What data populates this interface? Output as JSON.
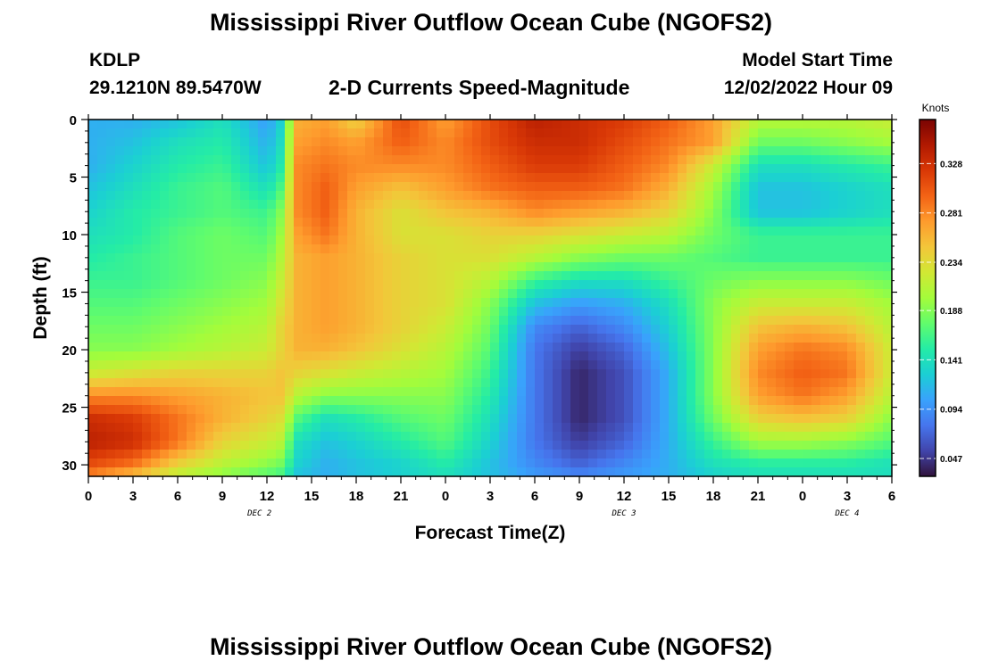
{
  "title": "Mississippi River Outflow Ocean Cube (NGOFS2)",
  "title_repeat": "Mississippi River Outflow Ocean Cube (NGOFS2)",
  "station": {
    "id": "KDLP",
    "coords": "29.1210N  89.5470W"
  },
  "plot_subtitle": "2-D Currents Speed-Magnitude",
  "model_start": {
    "label": "Model Start Time",
    "value": "12/02/2022 Hour 09"
  },
  "chart_data": {
    "type": "heatmap",
    "title": "2-D Currents Speed-Magnitude",
    "xlabel": "Forecast Time(Z)",
    "ylabel": "Depth (ft)",
    "x_hours": [
      0,
      3,
      6,
      9,
      12,
      15,
      18,
      21,
      24,
      27,
      30,
      33,
      36,
      39,
      42,
      45,
      48,
      51,
      54
    ],
    "x_tick_labels": [
      "0",
      "3",
      "6",
      "9",
      "12",
      "15",
      "18",
      "21",
      "0",
      "3",
      "6",
      "9",
      "12",
      "15",
      "18",
      "21",
      "0",
      "3",
      "6"
    ],
    "xlim": [
      0,
      54
    ],
    "y_ticks": [
      0,
      5,
      10,
      15,
      20,
      25,
      30
    ],
    "ylim": [
      0,
      31
    ],
    "y_inverted": true,
    "date_labels": [
      {
        "text": "DEC 2",
        "hour": 11.5
      },
      {
        "text": "DEC 3",
        "hour": 36
      },
      {
        "text": "DEC 4",
        "hour": 51
      }
    ],
    "colorbar": {
      "label": "Knots",
      "ticks": [
        0.047,
        0.094,
        0.141,
        0.188,
        0.234,
        0.281,
        0.328
      ],
      "range": [
        0.03,
        0.37
      ],
      "colors": [
        "#30123b",
        "#4145ab",
        "#4675ed",
        "#39a2fc",
        "#1bcfd4",
        "#24eca6",
        "#61fc6c",
        "#a4fc3b",
        "#d1e834",
        "#f3c63a",
        "#fe9b2d",
        "#f36315",
        "#d93806",
        "#b11901",
        "#7a0403"
      ]
    },
    "depths": [
      0,
      2,
      4,
      6,
      8,
      10,
      12,
      14,
      16,
      18,
      20,
      22,
      24,
      26,
      28,
      30,
      31
    ],
    "speed_time_hours": [
      0,
      3,
      6,
      9,
      12,
      13,
      14,
      16,
      18,
      21,
      24,
      27,
      30,
      33,
      36,
      39,
      42,
      45,
      48,
      51,
      54
    ],
    "speed_knots": [
      [
        0.11,
        0.11,
        0.12,
        0.14,
        0.1,
        0.13,
        0.26,
        0.27,
        0.24,
        0.31,
        0.27,
        0.31,
        0.34,
        0.33,
        0.32,
        0.3,
        0.27,
        0.21,
        0.21,
        0.21,
        0.22
      ],
      [
        0.11,
        0.12,
        0.14,
        0.15,
        0.11,
        0.14,
        0.27,
        0.28,
        0.27,
        0.3,
        0.28,
        0.31,
        0.33,
        0.33,
        0.31,
        0.29,
        0.27,
        0.18,
        0.18,
        0.19,
        0.2
      ],
      [
        0.11,
        0.13,
        0.15,
        0.16,
        0.12,
        0.15,
        0.28,
        0.29,
        0.28,
        0.28,
        0.28,
        0.3,
        0.32,
        0.32,
        0.3,
        0.28,
        0.22,
        0.14,
        0.14,
        0.15,
        0.16
      ],
      [
        0.12,
        0.14,
        0.16,
        0.17,
        0.14,
        0.17,
        0.28,
        0.3,
        0.27,
        0.25,
        0.27,
        0.29,
        0.3,
        0.3,
        0.29,
        0.26,
        0.2,
        0.12,
        0.12,
        0.13,
        0.14
      ],
      [
        0.13,
        0.15,
        0.16,
        0.17,
        0.16,
        0.19,
        0.28,
        0.3,
        0.26,
        0.23,
        0.25,
        0.26,
        0.28,
        0.27,
        0.26,
        0.24,
        0.19,
        0.12,
        0.12,
        0.13,
        0.14
      ],
      [
        0.14,
        0.15,
        0.17,
        0.18,
        0.17,
        0.2,
        0.27,
        0.29,
        0.26,
        0.23,
        0.23,
        0.24,
        0.24,
        0.23,
        0.22,
        0.21,
        0.18,
        0.16,
        0.16,
        0.16,
        0.16
      ],
      [
        0.15,
        0.16,
        0.17,
        0.18,
        0.18,
        0.21,
        0.26,
        0.27,
        0.26,
        0.24,
        0.23,
        0.23,
        0.21,
        0.19,
        0.18,
        0.18,
        0.17,
        0.16,
        0.16,
        0.16,
        0.16
      ],
      [
        0.16,
        0.16,
        0.17,
        0.18,
        0.19,
        0.22,
        0.26,
        0.27,
        0.26,
        0.24,
        0.23,
        0.21,
        0.16,
        0.14,
        0.14,
        0.16,
        0.18,
        0.19,
        0.19,
        0.19,
        0.18
      ],
      [
        0.17,
        0.17,
        0.18,
        0.19,
        0.2,
        0.23,
        0.26,
        0.27,
        0.26,
        0.24,
        0.23,
        0.19,
        0.12,
        0.1,
        0.11,
        0.14,
        0.19,
        0.22,
        0.22,
        0.22,
        0.2
      ],
      [
        0.18,
        0.18,
        0.19,
        0.2,
        0.21,
        0.24,
        0.26,
        0.27,
        0.26,
        0.24,
        0.22,
        0.18,
        0.09,
        0.07,
        0.09,
        0.13,
        0.19,
        0.25,
        0.26,
        0.25,
        0.21
      ],
      [
        0.19,
        0.19,
        0.2,
        0.21,
        0.22,
        0.24,
        0.26,
        0.26,
        0.25,
        0.23,
        0.21,
        0.17,
        0.08,
        0.05,
        0.07,
        0.12,
        0.19,
        0.27,
        0.29,
        0.28,
        0.22
      ],
      [
        0.22,
        0.23,
        0.24,
        0.24,
        0.24,
        0.25,
        0.24,
        0.23,
        0.22,
        0.21,
        0.2,
        0.16,
        0.08,
        0.04,
        0.06,
        0.11,
        0.19,
        0.28,
        0.3,
        0.29,
        0.22
      ],
      [
        0.28,
        0.28,
        0.27,
        0.26,
        0.25,
        0.25,
        0.21,
        0.19,
        0.19,
        0.19,
        0.19,
        0.15,
        0.08,
        0.04,
        0.06,
        0.11,
        0.19,
        0.27,
        0.29,
        0.27,
        0.21
      ],
      [
        0.33,
        0.32,
        0.29,
        0.26,
        0.24,
        0.23,
        0.17,
        0.14,
        0.15,
        0.17,
        0.18,
        0.14,
        0.08,
        0.04,
        0.06,
        0.11,
        0.18,
        0.24,
        0.25,
        0.24,
        0.19
      ],
      [
        0.34,
        0.33,
        0.29,
        0.24,
        0.22,
        0.21,
        0.14,
        0.12,
        0.13,
        0.15,
        0.17,
        0.13,
        0.08,
        0.05,
        0.07,
        0.11,
        0.16,
        0.2,
        0.2,
        0.19,
        0.17
      ],
      [
        0.31,
        0.29,
        0.24,
        0.21,
        0.19,
        0.18,
        0.13,
        0.11,
        0.12,
        0.13,
        0.15,
        0.12,
        0.09,
        0.07,
        0.09,
        0.11,
        0.14,
        0.15,
        0.15,
        0.15,
        0.14
      ],
      [
        0.28,
        0.25,
        0.21,
        0.19,
        0.17,
        0.16,
        0.12,
        0.11,
        0.12,
        0.13,
        0.14,
        0.12,
        0.1,
        0.09,
        0.1,
        0.11,
        0.13,
        0.14,
        0.14,
        0.14,
        0.14
      ]
    ]
  }
}
